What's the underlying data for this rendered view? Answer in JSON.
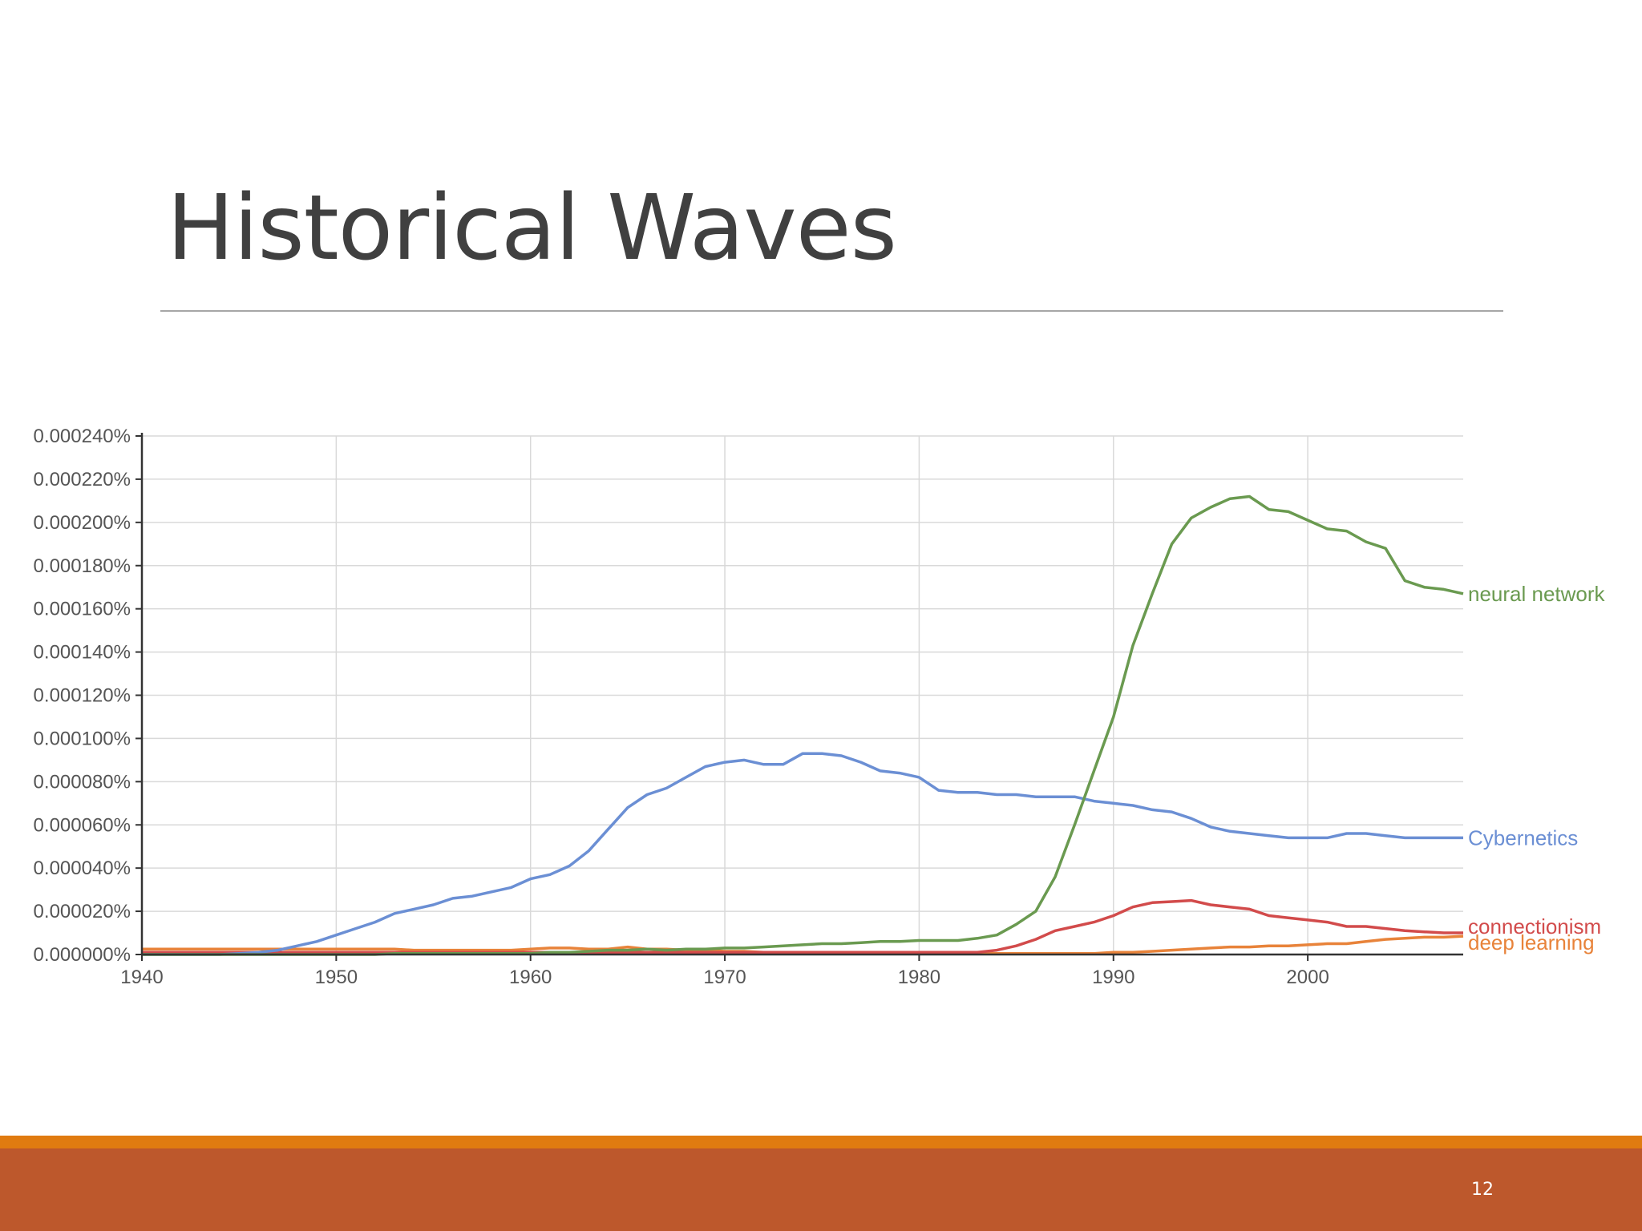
{
  "slide": {
    "title": "Historical Waves",
    "page_number": "12"
  },
  "theme": {
    "title_color": "#404040",
    "rule_color": "#a6a6a6",
    "accent_bar_color": "#e07b10",
    "footer_color": "#bd582c"
  },
  "chart_data": {
    "type": "line",
    "title": "",
    "xlabel": "",
    "ylabel": "",
    "xlim": [
      1940,
      2008
    ],
    "ylim": [
      0,
      0.00024
    ],
    "x_ticks": [
      "1940",
      "1950",
      "1960",
      "1970",
      "1980",
      "1990",
      "2000"
    ],
    "y_ticks": [
      "0.000000%",
      "0.000020%",
      "0.000040%",
      "0.000060%",
      "0.000080%",
      "0.000100%",
      "0.000120%",
      "0.000140%",
      "0.000160%",
      "0.000180%",
      "0.000200%",
      "0.000220%",
      "0.000240%"
    ],
    "grid": true,
    "legend": "inline labels at right end of lines",
    "x": [
      1940,
      1941,
      1942,
      1943,
      1944,
      1945,
      1946,
      1947,
      1948,
      1949,
      1950,
      1951,
      1952,
      1953,
      1954,
      1955,
      1956,
      1957,
      1958,
      1959,
      1960,
      1961,
      1962,
      1963,
      1964,
      1965,
      1966,
      1967,
      1968,
      1969,
      1970,
      1971,
      1972,
      1973,
      1974,
      1975,
      1976,
      1977,
      1978,
      1979,
      1980,
      1981,
      1982,
      1983,
      1984,
      1985,
      1986,
      1987,
      1988,
      1989,
      1990,
      1991,
      1992,
      1993,
      1994,
      1995,
      1996,
      1997,
      1998,
      1999,
      2000,
      2001,
      2002,
      2003,
      2004,
      2005,
      2006,
      2007,
      2008
    ],
    "series": [
      {
        "name": "neural network",
        "color": "#6a9a50",
        "values": [
          0,
          0,
          0,
          0,
          0,
          0,
          0,
          0,
          0,
          0,
          0,
          0,
          0,
          5e-07,
          5e-07,
          5e-07,
          5e-07,
          5e-07,
          5e-07,
          5e-07,
          5e-07,
          1e-06,
          1e-06,
          1.5e-06,
          2e-06,
          2e-06,
          2.5e-06,
          2e-06,
          2.5e-06,
          2.5e-06,
          3e-06,
          3e-06,
          3.5e-06,
          4e-06,
          4.5e-06,
          5e-06,
          5e-06,
          5.5e-06,
          6e-06,
          6e-06,
          6.5e-06,
          6.5e-06,
          6.5e-06,
          7.5e-06,
          9e-06,
          1.4e-05,
          2e-05,
          3.6e-05,
          6e-05,
          8.5e-05,
          0.00011,
          0.000143,
          0.000167,
          0.00019,
          0.000202,
          0.000207,
          0.000211,
          0.000212,
          0.000206,
          0.000205,
          0.000201,
          0.000197,
          0.000196,
          0.000191,
          0.000188,
          0.000173,
          0.00017,
          0.000169,
          0.000167
        ]
      },
      {
        "name": "Cybernetics",
        "color": "#6b8fd4",
        "values": [
          0,
          0,
          0,
          0,
          0,
          5e-07,
          1e-06,
          2e-06,
          4e-06,
          6e-06,
          9e-06,
          1.2e-05,
          1.5e-05,
          1.9e-05,
          2.1e-05,
          2.3e-05,
          2.6e-05,
          2.7e-05,
          2.9e-05,
          3.1e-05,
          3.5e-05,
          3.7e-05,
          4.1e-05,
          4.8e-05,
          5.8e-05,
          6.8e-05,
          7.4e-05,
          7.7e-05,
          8.2e-05,
          8.7e-05,
          8.9e-05,
          9e-05,
          8.8e-05,
          8.8e-05,
          9.3e-05,
          9.3e-05,
          9.2e-05,
          8.9e-05,
          8.5e-05,
          8.4e-05,
          8.2e-05,
          7.6e-05,
          7.5e-05,
          7.5e-05,
          7.4e-05,
          7.4e-05,
          7.3e-05,
          7.3e-05,
          7.3e-05,
          7.1e-05,
          7e-05,
          6.9e-05,
          6.7e-05,
          6.6e-05,
          6.3e-05,
          5.9e-05,
          5.7e-05,
          5.6e-05,
          5.5e-05,
          5.4e-05,
          5.4e-05,
          5.4e-05,
          5.6e-05,
          5.6e-05,
          5.5e-05,
          5.4e-05,
          5.4e-05,
          5.4e-05,
          5.4e-05
        ]
      },
      {
        "name": "connectionism",
        "color": "#d24b4b",
        "values": [
          1e-06,
          1e-06,
          1e-06,
          1e-06,
          1e-06,
          1e-06,
          1e-06,
          1e-06,
          1e-06,
          1e-06,
          1e-06,
          1e-06,
          1e-06,
          1e-06,
          1e-06,
          1e-06,
          1e-06,
          1e-06,
          1e-06,
          1e-06,
          1e-06,
          1e-06,
          1e-06,
          1e-06,
          1e-06,
          1e-06,
          1e-06,
          1e-06,
          1e-06,
          1e-06,
          1e-06,
          1e-06,
          1e-06,
          1e-06,
          1e-06,
          1e-06,
          1e-06,
          1e-06,
          1e-06,
          1e-06,
          1e-06,
          1e-06,
          1e-06,
          1e-06,
          2e-06,
          4e-06,
          7e-06,
          1.1e-05,
          1.3e-05,
          1.5e-05,
          1.8e-05,
          2.2e-05,
          2.4e-05,
          2.45e-05,
          2.5e-05,
          2.3e-05,
          2.2e-05,
          2.1e-05,
          1.8e-05,
          1.7e-05,
          1.6e-05,
          1.5e-05,
          1.3e-05,
          1.3e-05,
          1.2e-05,
          1.1e-05,
          1.05e-05,
          1e-05,
          1e-05
        ]
      },
      {
        "name": "deep learning",
        "color": "#e8833a",
        "values": [
          2.5e-06,
          2.5e-06,
          2.5e-06,
          2.5e-06,
          2.5e-06,
          2.5e-06,
          2.5e-06,
          2.5e-06,
          2.5e-06,
          2.5e-06,
          2.5e-06,
          2.5e-06,
          2.5e-06,
          2.5e-06,
          2e-06,
          2e-06,
          2e-06,
          2e-06,
          2e-06,
          2e-06,
          2.5e-06,
          3e-06,
          3e-06,
          2.5e-06,
          2.5e-06,
          3.5e-06,
          2.5e-06,
          2.5e-06,
          2e-06,
          2e-06,
          1.5e-06,
          1.5e-06,
          1e-06,
          1e-06,
          1e-06,
          1e-06,
          1e-06,
          1e-06,
          1e-06,
          1e-06,
          1e-06,
          5e-07,
          5e-07,
          5e-07,
          5e-07,
          5e-07,
          5e-07,
          5e-07,
          5e-07,
          5e-07,
          1e-06,
          1e-06,
          1.5e-06,
          2e-06,
          2.5e-06,
          3e-06,
          3.5e-06,
          3.5e-06,
          4e-06,
          4e-06,
          4.5e-06,
          5e-06,
          5e-06,
          6e-06,
          7e-06,
          7.5e-06,
          8e-06,
          8e-06,
          8.5e-06
        ]
      }
    ]
  }
}
